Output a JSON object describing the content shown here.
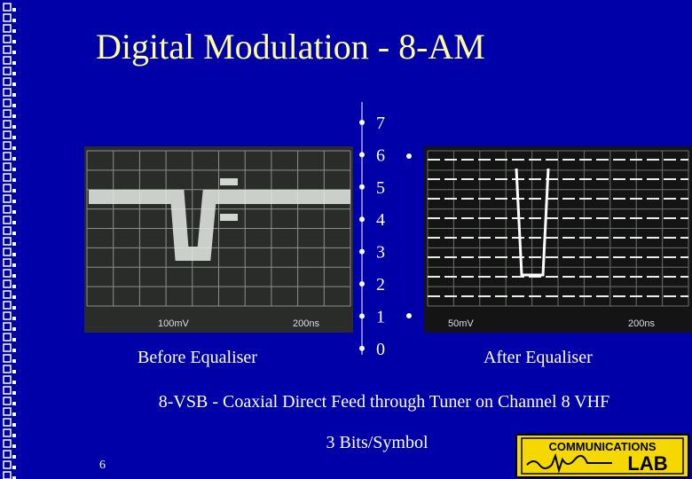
{
  "title": "Digital Modulation - 8-AM",
  "levels": [
    "7",
    "6",
    "5",
    "4",
    "3",
    "2",
    "1",
    "0"
  ],
  "before_label": "Before Equaliser",
  "after_label": "After Equaliser",
  "subtitle": "8-VSB - Coaxial Direct Feed through Tuner on Channel 8 VHF",
  "bits": "3 Bits/Symbol",
  "page_number": "6",
  "scope_left": {
    "volts": "100mV",
    "time": "200ns"
  },
  "scope_right": {
    "volts": "50mV",
    "time": "200ns"
  },
  "logo": {
    "top": "COMMUNICATIONS",
    "bottom": "LAB"
  }
}
